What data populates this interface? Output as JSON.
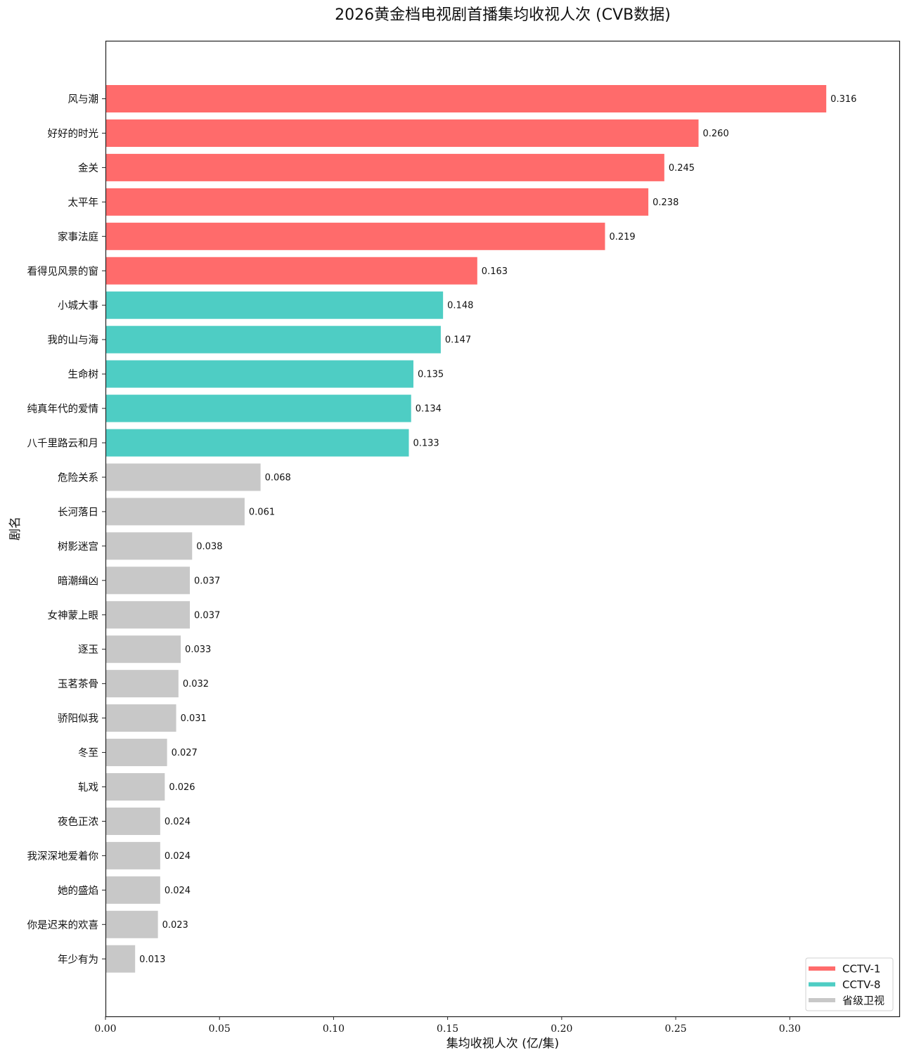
{
  "chart_data": {
    "type": "bar",
    "orientation": "horizontal",
    "title": "2026黄金档电视剧首播集均收视人次 (CVB数据)",
    "xlabel": "集均收视人次 (亿/集)",
    "ylabel": "剧名",
    "xlim": [
      0,
      0.348
    ],
    "xticks": [
      "0.00",
      "0.05",
      "0.10",
      "0.15",
      "0.20",
      "0.25",
      "0.30"
    ],
    "legend_position": "bottom-right",
    "series": [
      {
        "name": "CCTV-1",
        "color": "#ff6b6b"
      },
      {
        "name": "CCTV-8",
        "color": "#4ecdc4"
      },
      {
        "name": "省级卫视",
        "color": "#c8c8c8"
      }
    ],
    "bars": [
      {
        "label": "风与潮",
        "value": 0.316,
        "value_label": "0.316",
        "series": 0
      },
      {
        "label": "好好的时光",
        "value": 0.26,
        "value_label": "0.260",
        "series": 0
      },
      {
        "label": "金关",
        "value": 0.245,
        "value_label": "0.245",
        "series": 0
      },
      {
        "label": "太平年",
        "value": 0.238,
        "value_label": "0.238",
        "series": 0
      },
      {
        "label": "家事法庭",
        "value": 0.219,
        "value_label": "0.219",
        "series": 0
      },
      {
        "label": "看得见风景的窗",
        "value": 0.163,
        "value_label": "0.163",
        "series": 0
      },
      {
        "label": "小城大事",
        "value": 0.148,
        "value_label": "0.148",
        "series": 1
      },
      {
        "label": "我的山与海",
        "value": 0.147,
        "value_label": "0.147",
        "series": 1
      },
      {
        "label": "生命树",
        "value": 0.135,
        "value_label": "0.135",
        "series": 1
      },
      {
        "label": "纯真年代的爱情",
        "value": 0.134,
        "value_label": "0.134",
        "series": 1
      },
      {
        "label": "八千里路云和月",
        "value": 0.133,
        "value_label": "0.133",
        "series": 1
      },
      {
        "label": "危险关系",
        "value": 0.068,
        "value_label": "0.068",
        "series": 2
      },
      {
        "label": "长河落日",
        "value": 0.061,
        "value_label": "0.061",
        "series": 2
      },
      {
        "label": "树影迷宫",
        "value": 0.038,
        "value_label": "0.038",
        "series": 2
      },
      {
        "label": "暗潮缉凶",
        "value": 0.037,
        "value_label": "0.037",
        "series": 2
      },
      {
        "label": "女神蒙上眼",
        "value": 0.037,
        "value_label": "0.037",
        "series": 2
      },
      {
        "label": "逐玉",
        "value": 0.033,
        "value_label": "0.033",
        "series": 2
      },
      {
        "label": "玉茗茶骨",
        "value": 0.032,
        "value_label": "0.032",
        "series": 2
      },
      {
        "label": "骄阳似我",
        "value": 0.031,
        "value_label": "0.031",
        "series": 2
      },
      {
        "label": "冬至",
        "value": 0.027,
        "value_label": "0.027",
        "series": 2
      },
      {
        "label": "轧戏",
        "value": 0.026,
        "value_label": "0.026",
        "series": 2
      },
      {
        "label": "夜色正浓",
        "value": 0.024,
        "value_label": "0.024",
        "series": 2
      },
      {
        "label": "我深深地爱着你",
        "value": 0.024,
        "value_label": "0.024",
        "series": 2
      },
      {
        "label": "她的盛焰",
        "value": 0.024,
        "value_label": "0.024",
        "series": 2
      },
      {
        "label": "你是迟来的欢喜",
        "value": 0.023,
        "value_label": "0.023",
        "series": 2
      },
      {
        "label": "年少有为",
        "value": 0.013,
        "value_label": "0.013",
        "series": 2
      }
    ]
  }
}
